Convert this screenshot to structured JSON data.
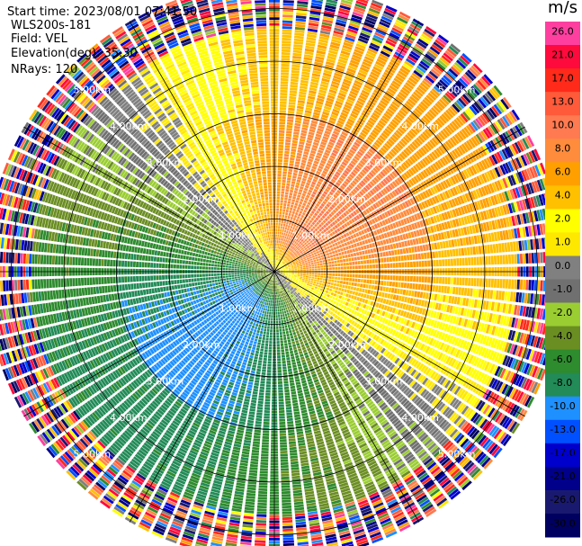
{
  "header": {
    "start_time": "Start time: 2023/08/01 07:41:50",
    "instrument": "WLS200s-181",
    "field": "Field: VEL",
    "elevation": "Elevation(deg): 35.30",
    "nrays": "NRays: 120"
  },
  "chart_data": {
    "type": "heatmap",
    "projection": "polar-ppi",
    "field": "VEL",
    "units": "m/s",
    "n_rays": 120,
    "elevation_deg": 35.3,
    "range_rings_km": [
      1.0,
      2.0,
      3.0,
      4.0,
      5.0
    ],
    "ring_labels": [
      "1.00km",
      "2.00km",
      "3.00km",
      "4.00km",
      "5.00km"
    ],
    "max_range_km": 5.5,
    "colorbar": {
      "unit": "m/s",
      "ticks": [
        "26.0",
        "21.0",
        "17.0",
        "13.0",
        "10.0",
        "8.0",
        "6.0",
        "4.0",
        "2.0",
        "1.0",
        "0.0",
        "-1.0",
        "-2.0",
        "-4.0",
        "-6.0",
        "-8.0",
        "-10.0",
        "-13.0",
        "-17.0",
        "-21.0",
        "-26.0",
        "-30.0"
      ],
      "colors": [
        "#ff3fa0",
        "#ff0a3c",
        "#ff2a1a",
        "#ff5a3a",
        "#ff7a50",
        "#ff8c3c",
        "#ffa000",
        "#ffc000",
        "#ffff00",
        "#ffe800",
        "#808080",
        "#707070",
        "#9acd32",
        "#6b8e23",
        "#2e8b2e",
        "#228b57",
        "#1e90ff",
        "#0050ff",
        "#0000cd",
        "#00008b",
        "#191970",
        "#000060"
      ]
    },
    "pattern": {
      "approach_azimuth_deg": 45,
      "departure_azimuth_deg": 225,
      "approach_peak_ms": 10.0,
      "departure_peak_ms": -9.0,
      "noise_start_km": 4.6
    }
  }
}
